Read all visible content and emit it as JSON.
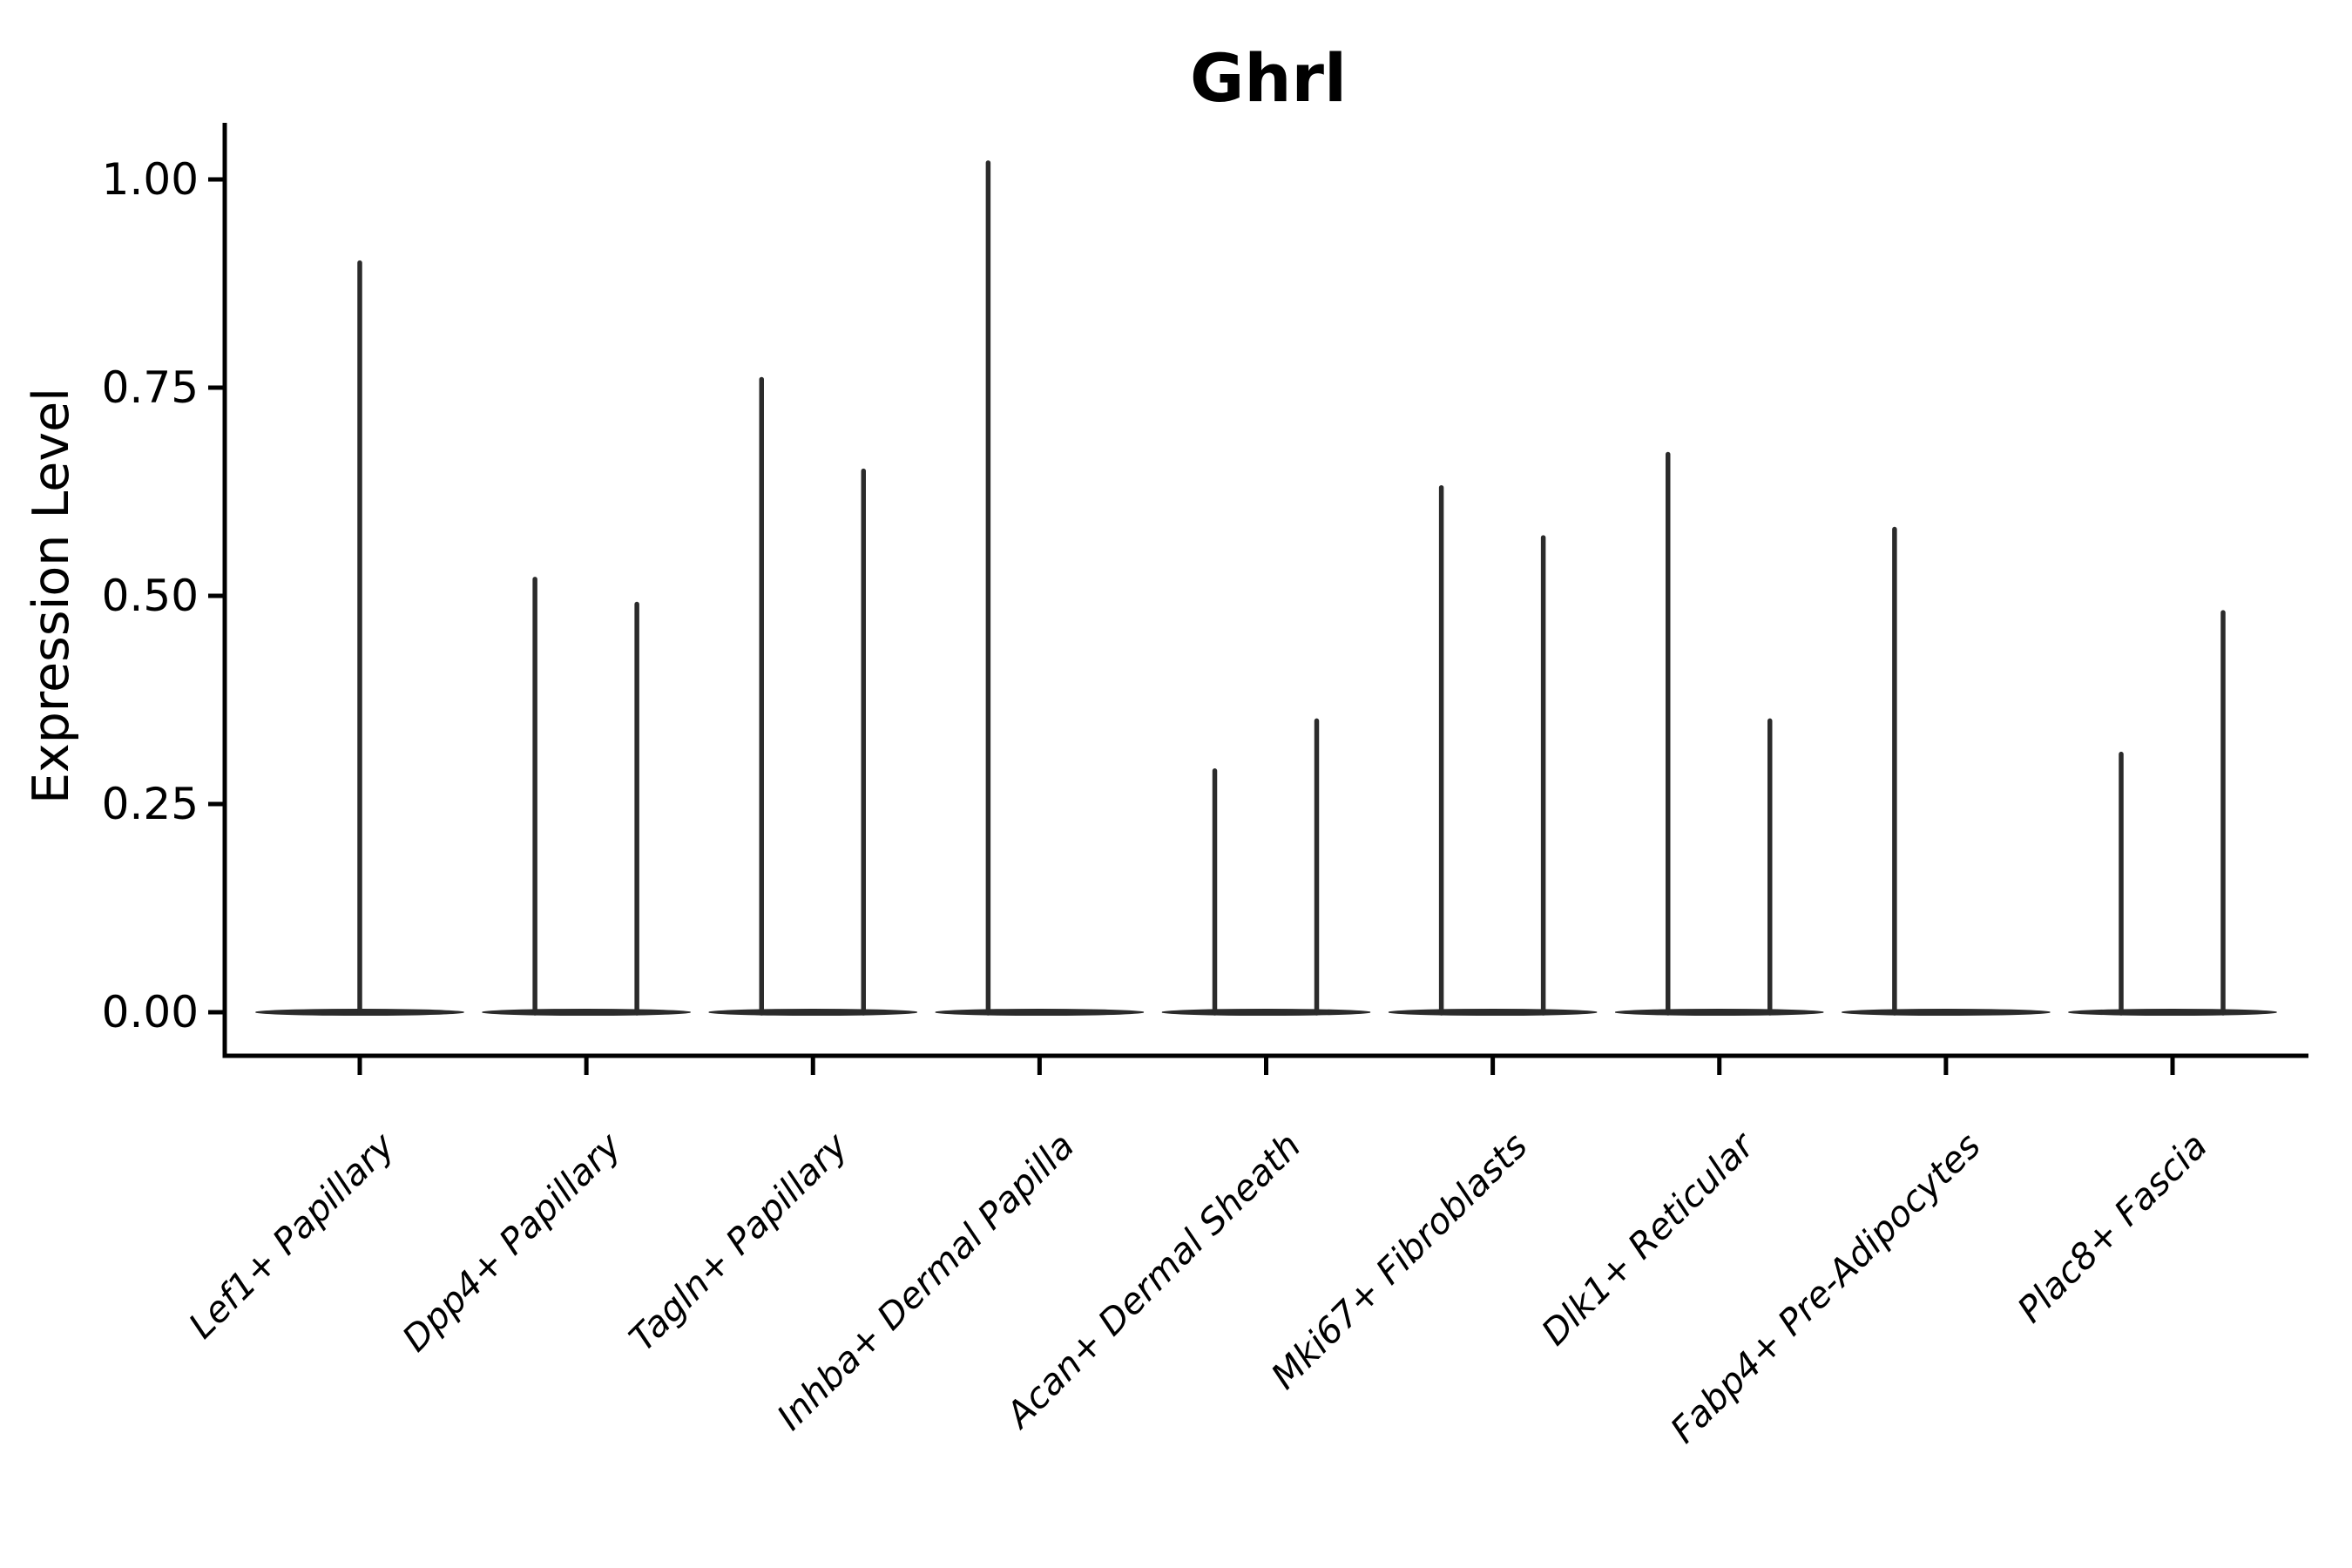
{
  "chart_data": {
    "type": "violin",
    "title": "Ghrl",
    "ylabel": "Expression Level",
    "xlabel": "",
    "grid": false,
    "legend": "none",
    "ylim": [
      0.0,
      1.07
    ],
    "yticks": [
      0.0,
      0.25,
      0.5,
      0.75,
      1.0
    ],
    "ytick_labels": [
      "0.00",
      "0.25",
      "0.50",
      "0.75",
      "1.00"
    ],
    "baseline_value": 0.0,
    "categories": [
      "Lef1+ Papillary",
      "Dpp4+ Papillary",
      "Tagln+ Papillary",
      "Inhba+ Dermal Papilla",
      "Acan+ Dermal Sheath",
      "Mki67+ Fibroblasts",
      "Dlk1+ Reticular",
      "Fabp4+ Pre-Adipocytes",
      "Plac8+ Fascia"
    ],
    "violins": [
      {
        "category": "Lef1+ Papillary",
        "description": "flat base at 0 with thin density spike",
        "spikes": [
          {
            "slot": "center",
            "max": 0.9
          }
        ]
      },
      {
        "category": "Dpp4+ Papillary",
        "description": "flat base at 0 with thin density spikes",
        "spikes": [
          {
            "slot": "left",
            "max": 0.52
          },
          {
            "slot": "right",
            "max": 0.49
          }
        ]
      },
      {
        "category": "Tagln+ Papillary",
        "description": "flat base at 0 with thin density spikes",
        "spikes": [
          {
            "slot": "left",
            "max": 0.76
          },
          {
            "slot": "right",
            "max": 0.65
          }
        ]
      },
      {
        "category": "Inhba+ Dermal Papilla",
        "description": "flat base at 0 with thin density spike",
        "spikes": [
          {
            "slot": "left",
            "max": 1.02
          }
        ]
      },
      {
        "category": "Acan+ Dermal Sheath",
        "description": "flat base at 0 with thin density spikes",
        "spikes": [
          {
            "slot": "left",
            "max": 0.29
          },
          {
            "slot": "right",
            "max": 0.35
          }
        ]
      },
      {
        "category": "Mki67+ Fibroblasts",
        "description": "flat base at 0 with thin density spikes",
        "spikes": [
          {
            "slot": "left",
            "max": 0.63
          },
          {
            "slot": "right",
            "max": 0.57
          }
        ]
      },
      {
        "category": "Dlk1+ Reticular",
        "description": "flat base at 0 with thin density spikes",
        "spikes": [
          {
            "slot": "left",
            "max": 0.67
          },
          {
            "slot": "right",
            "max": 0.35
          }
        ]
      },
      {
        "category": "Fabp4+ Pre-Adipocytes",
        "description": "flat base at 0 with thin density spike",
        "spikes": [
          {
            "slot": "left",
            "max": 0.58
          }
        ]
      },
      {
        "category": "Plac8+ Fascia",
        "description": "flat base at 0 with thin density spikes",
        "spikes": [
          {
            "slot": "left",
            "max": 0.31
          },
          {
            "slot": "right",
            "max": 0.48
          }
        ]
      }
    ],
    "colors": {
      "violin": "#2b2b2b",
      "axis": "#000000",
      "text": "#000000",
      "background": "#ffffff"
    }
  }
}
